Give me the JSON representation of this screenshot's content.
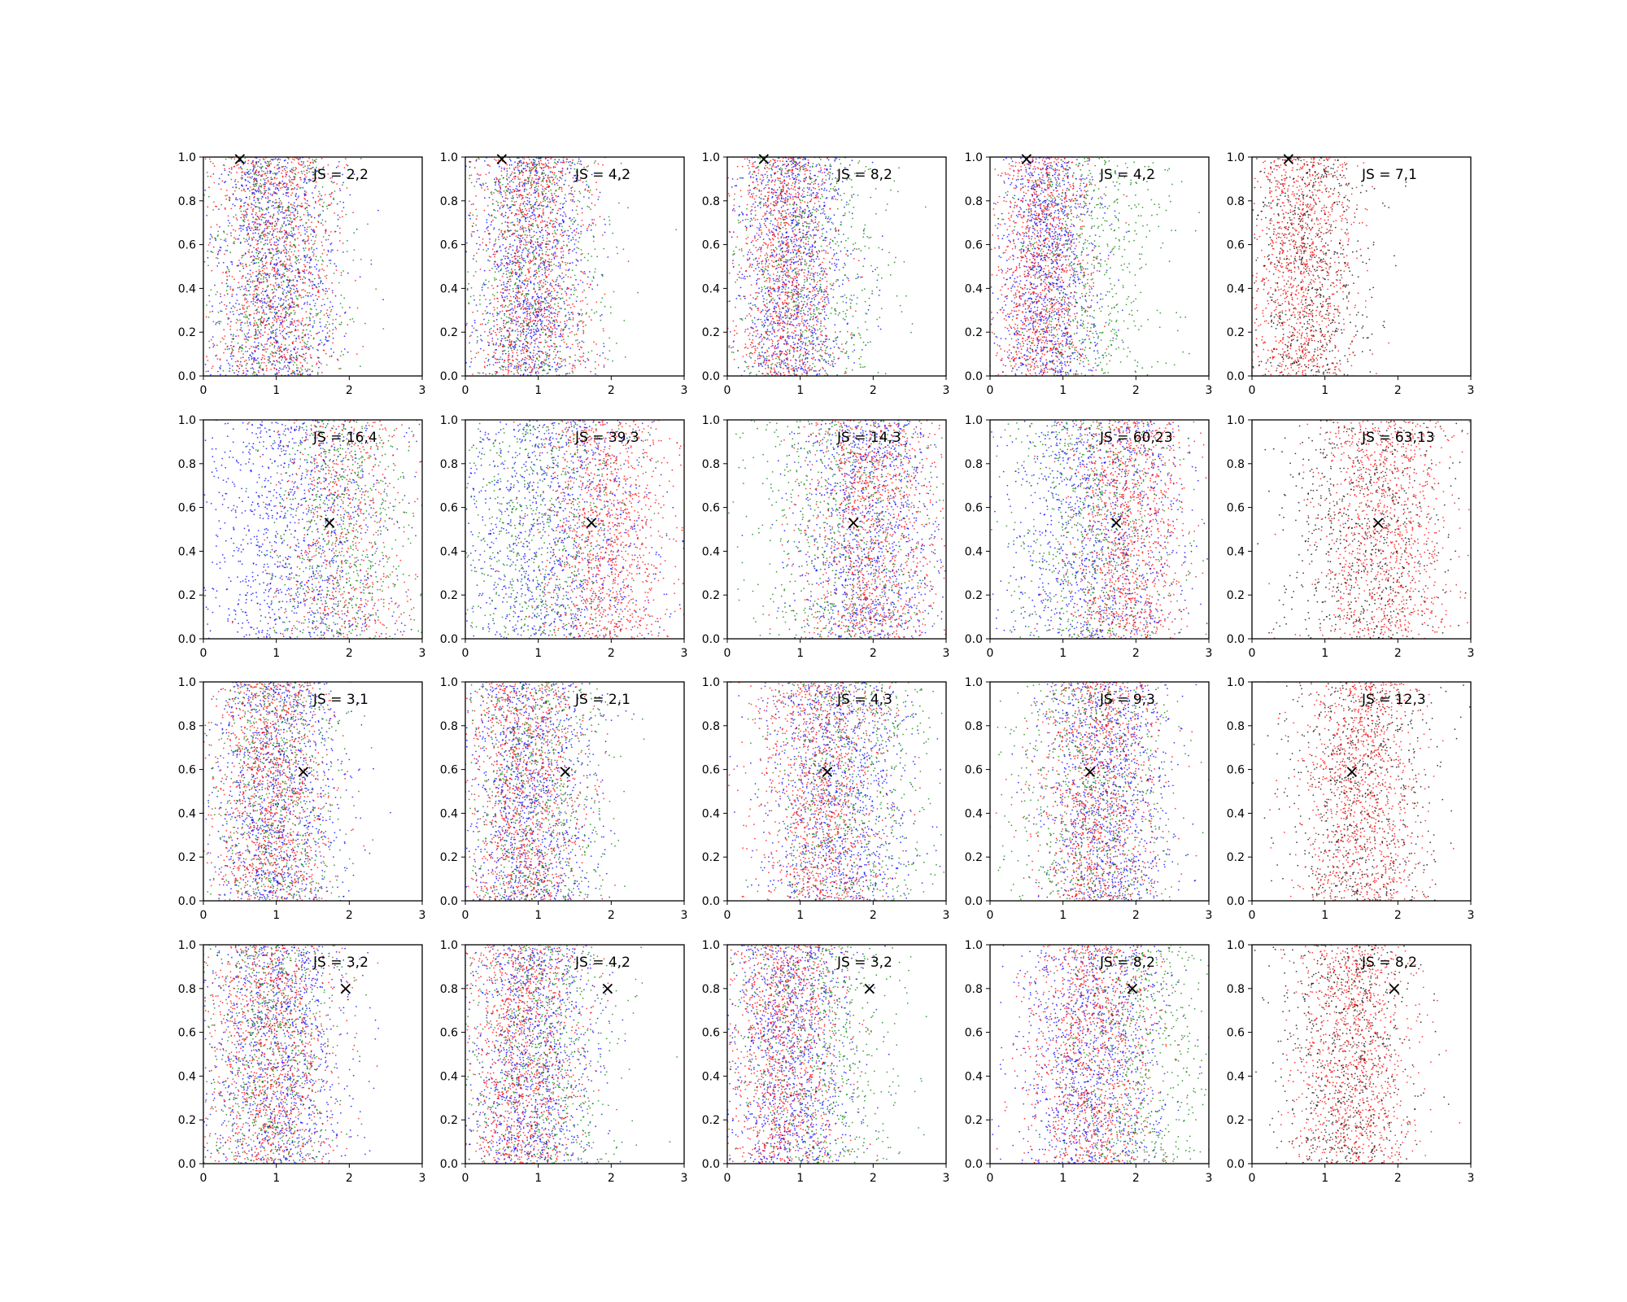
{
  "figure": {
    "rows": 4,
    "cols": 5,
    "x_ticks": [
      "0",
      "1",
      "2",
      "3"
    ],
    "y_ticks": [
      "0.0",
      "0.2",
      "0.4",
      "0.6",
      "0.8",
      "1.0"
    ],
    "marker_glyph": "×",
    "colors": {
      "blue": "#0000ff",
      "red": "#ff0000",
      "green": "#008000",
      "black": "#000000"
    }
  },
  "chart_data": [
    {
      "type": "scatter",
      "row": 0,
      "col": 0,
      "xlim": [
        0,
        3
      ],
      "ylim": [
        0,
        1
      ],
      "annotation": "JS = 2,2",
      "marker": [
        0.5,
        0.99
      ],
      "series": [
        {
          "color": "#0000ff",
          "center_x": 1.0,
          "spread_x": 0.45,
          "density": "high"
        },
        {
          "color": "#ff0000",
          "center_x": 1.0,
          "spread_x": 0.45,
          "density": "high"
        },
        {
          "color": "#008000",
          "center_x": 1.0,
          "spread_x": 0.45,
          "density": "medium"
        }
      ]
    },
    {
      "type": "scatter",
      "row": 0,
      "col": 1,
      "xlim": [
        0,
        3
      ],
      "ylim": [
        0,
        1
      ],
      "annotation": "JS = 4,2",
      "marker": [
        0.5,
        0.99
      ],
      "series": [
        {
          "color": "#0000ff",
          "center_x": 0.9,
          "spread_x": 0.4,
          "density": "high"
        },
        {
          "color": "#ff0000",
          "center_x": 0.9,
          "spread_x": 0.4,
          "density": "high"
        },
        {
          "color": "#008000",
          "center_x": 1.0,
          "spread_x": 0.5,
          "density": "medium"
        }
      ]
    },
    {
      "type": "scatter",
      "row": 0,
      "col": 2,
      "xlim": [
        0,
        3
      ],
      "ylim": [
        0,
        1
      ],
      "annotation": "JS = 8,2",
      "marker": [
        0.5,
        0.99
      ],
      "series": [
        {
          "color": "#0000ff",
          "center_x": 0.9,
          "spread_x": 0.4,
          "density": "high"
        },
        {
          "color": "#ff0000",
          "center_x": 0.8,
          "spread_x": 0.35,
          "density": "high"
        },
        {
          "color": "#008000",
          "center_x": 1.1,
          "spread_x": 0.55,
          "density": "medium"
        }
      ]
    },
    {
      "type": "scatter",
      "row": 0,
      "col": 3,
      "xlim": [
        0,
        3
      ],
      "ylim": [
        0,
        1
      ],
      "annotation": "JS = 4,2",
      "marker": [
        0.5,
        0.99
      ],
      "series": [
        {
          "color": "#0000ff",
          "center_x": 0.8,
          "spread_x": 0.35,
          "density": "high"
        },
        {
          "color": "#ff0000",
          "center_x": 0.7,
          "spread_x": 0.35,
          "density": "high"
        },
        {
          "color": "#008000",
          "center_x": 1.3,
          "spread_x": 0.55,
          "density": "medium"
        }
      ]
    },
    {
      "type": "scatter",
      "row": 0,
      "col": 4,
      "xlim": [
        0,
        3
      ],
      "ylim": [
        0,
        1
      ],
      "annotation": "JS = 7,1",
      "marker": [
        0.5,
        0.99
      ],
      "series": [
        {
          "color": "#ff0000",
          "center_x": 0.7,
          "spread_x": 0.35,
          "density": "high"
        },
        {
          "color": "#000000",
          "center_x": 0.8,
          "spread_x": 0.4,
          "density": "medium"
        }
      ]
    },
    {
      "type": "scatter",
      "row": 1,
      "col": 0,
      "xlim": [
        0,
        3
      ],
      "ylim": [
        0,
        1
      ],
      "annotation": "JS = 16,4",
      "marker": [
        1.73,
        0.53
      ],
      "series": [
        {
          "color": "#0000ff",
          "center_x": 1.3,
          "spread_x": 0.7,
          "density": "high"
        },
        {
          "color": "#ff0000",
          "center_x": 1.9,
          "spread_x": 0.5,
          "density": "medium"
        },
        {
          "color": "#008000",
          "center_x": 1.9,
          "spread_x": 0.5,
          "density": "medium"
        }
      ]
    },
    {
      "type": "scatter",
      "row": 1,
      "col": 1,
      "xlim": [
        0,
        3
      ],
      "ylim": [
        0,
        1
      ],
      "annotation": "JS = 39,3",
      "marker": [
        1.73,
        0.53
      ],
      "series": [
        {
          "color": "#0000ff",
          "center_x": 1.2,
          "spread_x": 0.7,
          "density": "high"
        },
        {
          "color": "#ff0000",
          "center_x": 1.9,
          "spread_x": 0.45,
          "density": "high"
        },
        {
          "color": "#008000",
          "center_x": 1.0,
          "spread_x": 0.6,
          "density": "medium"
        }
      ]
    },
    {
      "type": "scatter",
      "row": 1,
      "col": 2,
      "xlim": [
        0,
        3
      ],
      "ylim": [
        0,
        1
      ],
      "annotation": "JS = 14,3",
      "marker": [
        1.73,
        0.53
      ],
      "series": [
        {
          "color": "#0000ff",
          "center_x": 1.9,
          "spread_x": 0.5,
          "density": "high"
        },
        {
          "color": "#ff0000",
          "center_x": 2.0,
          "spread_x": 0.45,
          "density": "high"
        },
        {
          "color": "#008000",
          "center_x": 1.6,
          "spread_x": 0.7,
          "density": "medium"
        }
      ]
    },
    {
      "type": "scatter",
      "row": 1,
      "col": 3,
      "xlim": [
        0,
        3
      ],
      "ylim": [
        0,
        1
      ],
      "annotation": "JS = 60,23",
      "marker": [
        1.73,
        0.53
      ],
      "series": [
        {
          "color": "#0000ff",
          "center_x": 1.5,
          "spread_x": 0.6,
          "density": "high"
        },
        {
          "color": "#ff0000",
          "center_x": 1.9,
          "spread_x": 0.4,
          "density": "high"
        },
        {
          "color": "#008000",
          "center_x": 1.4,
          "spread_x": 0.6,
          "density": "medium"
        }
      ]
    },
    {
      "type": "scatter",
      "row": 1,
      "col": 4,
      "xlim": [
        0,
        3
      ],
      "ylim": [
        0,
        1
      ],
      "annotation": "JS = 63,13",
      "marker": [
        1.73,
        0.53
      ],
      "series": [
        {
          "color": "#ff0000",
          "center_x": 1.8,
          "spread_x": 0.45,
          "density": "high"
        },
        {
          "color": "#000000",
          "center_x": 1.5,
          "spread_x": 0.6,
          "density": "medium"
        }
      ]
    },
    {
      "type": "scatter",
      "row": 2,
      "col": 0,
      "xlim": [
        0,
        3
      ],
      "ylim": [
        0,
        1
      ],
      "annotation": "JS = 3,1",
      "marker": [
        1.37,
        0.59
      ],
      "series": [
        {
          "color": "#0000ff",
          "center_x": 1.0,
          "spread_x": 0.45,
          "density": "high"
        },
        {
          "color": "#ff0000",
          "center_x": 0.9,
          "spread_x": 0.4,
          "density": "high"
        },
        {
          "color": "#008000",
          "center_x": 1.0,
          "spread_x": 0.45,
          "density": "medium"
        }
      ]
    },
    {
      "type": "scatter",
      "row": 2,
      "col": 1,
      "xlim": [
        0,
        3
      ],
      "ylim": [
        0,
        1
      ],
      "annotation": "JS = 2,1",
      "marker": [
        1.37,
        0.59
      ],
      "series": [
        {
          "color": "#0000ff",
          "center_x": 0.9,
          "spread_x": 0.45,
          "density": "high"
        },
        {
          "color": "#ff0000",
          "center_x": 0.8,
          "spread_x": 0.4,
          "density": "high"
        },
        {
          "color": "#008000",
          "center_x": 1.0,
          "spread_x": 0.5,
          "density": "medium"
        }
      ]
    },
    {
      "type": "scatter",
      "row": 2,
      "col": 2,
      "xlim": [
        0,
        3
      ],
      "ylim": [
        0,
        1
      ],
      "annotation": "JS = 4,3",
      "marker": [
        1.37,
        0.59
      ],
      "series": [
        {
          "color": "#0000ff",
          "center_x": 1.5,
          "spread_x": 0.5,
          "density": "high"
        },
        {
          "color": "#ff0000",
          "center_x": 1.3,
          "spread_x": 0.45,
          "density": "high"
        },
        {
          "color": "#008000",
          "center_x": 1.7,
          "spread_x": 0.6,
          "density": "medium"
        }
      ]
    },
    {
      "type": "scatter",
      "row": 2,
      "col": 3,
      "xlim": [
        0,
        3
      ],
      "ylim": [
        0,
        1
      ],
      "annotation": "JS = 9,3",
      "marker": [
        1.37,
        0.59
      ],
      "series": [
        {
          "color": "#0000ff",
          "center_x": 1.6,
          "spread_x": 0.45,
          "density": "high"
        },
        {
          "color": "#ff0000",
          "center_x": 1.5,
          "spread_x": 0.4,
          "density": "high"
        },
        {
          "color": "#008000",
          "center_x": 1.4,
          "spread_x": 0.6,
          "density": "medium"
        }
      ]
    },
    {
      "type": "scatter",
      "row": 2,
      "col": 4,
      "xlim": [
        0,
        3
      ],
      "ylim": [
        0,
        1
      ],
      "annotation": "JS = 12,3",
      "marker": [
        1.37,
        0.59
      ],
      "series": [
        {
          "color": "#ff0000",
          "center_x": 1.5,
          "spread_x": 0.4,
          "density": "high"
        },
        {
          "color": "#000000",
          "center_x": 1.5,
          "spread_x": 0.55,
          "density": "medium"
        }
      ]
    },
    {
      "type": "scatter",
      "row": 3,
      "col": 0,
      "xlim": [
        0,
        3
      ],
      "ylim": [
        0,
        1
      ],
      "annotation": "JS = 3,2",
      "marker": [
        1.95,
        0.8
      ],
      "series": [
        {
          "color": "#0000ff",
          "center_x": 1.0,
          "spread_x": 0.5,
          "density": "high"
        },
        {
          "color": "#ff0000",
          "center_x": 0.9,
          "spread_x": 0.45,
          "density": "high"
        },
        {
          "color": "#008000",
          "center_x": 0.9,
          "spread_x": 0.45,
          "density": "medium"
        }
      ]
    },
    {
      "type": "scatter",
      "row": 3,
      "col": 1,
      "xlim": [
        0,
        3
      ],
      "ylim": [
        0,
        1
      ],
      "annotation": "JS = 4,2",
      "marker": [
        1.95,
        0.8
      ],
      "series": [
        {
          "color": "#0000ff",
          "center_x": 0.9,
          "spread_x": 0.45,
          "density": "high"
        },
        {
          "color": "#ff0000",
          "center_x": 0.8,
          "spread_x": 0.4,
          "density": "high"
        },
        {
          "color": "#008000",
          "center_x": 1.0,
          "spread_x": 0.55,
          "density": "medium"
        }
      ]
    },
    {
      "type": "scatter",
      "row": 3,
      "col": 2,
      "xlim": [
        0,
        3
      ],
      "ylim": [
        0,
        1
      ],
      "annotation": "JS = 3,2",
      "marker": [
        1.95,
        0.8
      ],
      "series": [
        {
          "color": "#0000ff",
          "center_x": 0.9,
          "spread_x": 0.45,
          "density": "high"
        },
        {
          "color": "#ff0000",
          "center_x": 0.8,
          "spread_x": 0.4,
          "density": "high"
        },
        {
          "color": "#008000",
          "center_x": 1.2,
          "spread_x": 0.6,
          "density": "medium"
        }
      ]
    },
    {
      "type": "scatter",
      "row": 3,
      "col": 3,
      "xlim": [
        0,
        3
      ],
      "ylim": [
        0,
        1
      ],
      "annotation": "JS = 8,2",
      "marker": [
        1.95,
        0.8
      ],
      "series": [
        {
          "color": "#0000ff",
          "center_x": 1.4,
          "spread_x": 0.5,
          "density": "high"
        },
        {
          "color": "#ff0000",
          "center_x": 1.4,
          "spread_x": 0.45,
          "density": "high"
        },
        {
          "color": "#008000",
          "center_x": 2.1,
          "spread_x": 0.55,
          "density": "medium"
        }
      ]
    },
    {
      "type": "scatter",
      "row": 3,
      "col": 4,
      "xlim": [
        0,
        3
      ],
      "ylim": [
        0,
        1
      ],
      "annotation": "JS = 8,2",
      "marker": [
        1.95,
        0.8
      ],
      "series": [
        {
          "color": "#ff0000",
          "center_x": 1.4,
          "spread_x": 0.4,
          "density": "high"
        },
        {
          "color": "#000000",
          "center_x": 1.3,
          "spread_x": 0.5,
          "density": "medium"
        }
      ]
    }
  ]
}
